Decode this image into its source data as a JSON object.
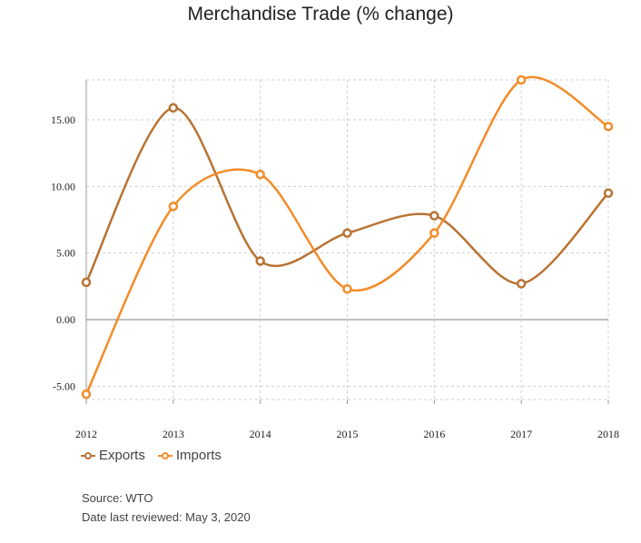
{
  "chart_data": {
    "type": "line",
    "title": "Merchandise Trade (% change)",
    "x": [
      "2012",
      "2013",
      "2014",
      "2015",
      "2016",
      "2017",
      "2018"
    ],
    "series": [
      {
        "name": "Exports",
        "color": "#B87333",
        "values": [
          2.8,
          15.9,
          4.4,
          6.5,
          7.8,
          2.7,
          9.5
        ]
      },
      {
        "name": "Imports",
        "color": "#F28C28",
        "values": [
          -5.6,
          8.5,
          10.9,
          2.3,
          6.5,
          18.0,
          14.5
        ]
      }
    ],
    "yticks": [
      "-5.00",
      "0.00",
      "5.00",
      "10.00",
      "15.00"
    ],
    "ylim": [
      -6,
      18
    ],
    "grid": true,
    "legend_position": "bottom-left"
  },
  "footer": {
    "source": "Source: WTO",
    "reviewed": "Date last reviewed: May 3, 2020"
  }
}
